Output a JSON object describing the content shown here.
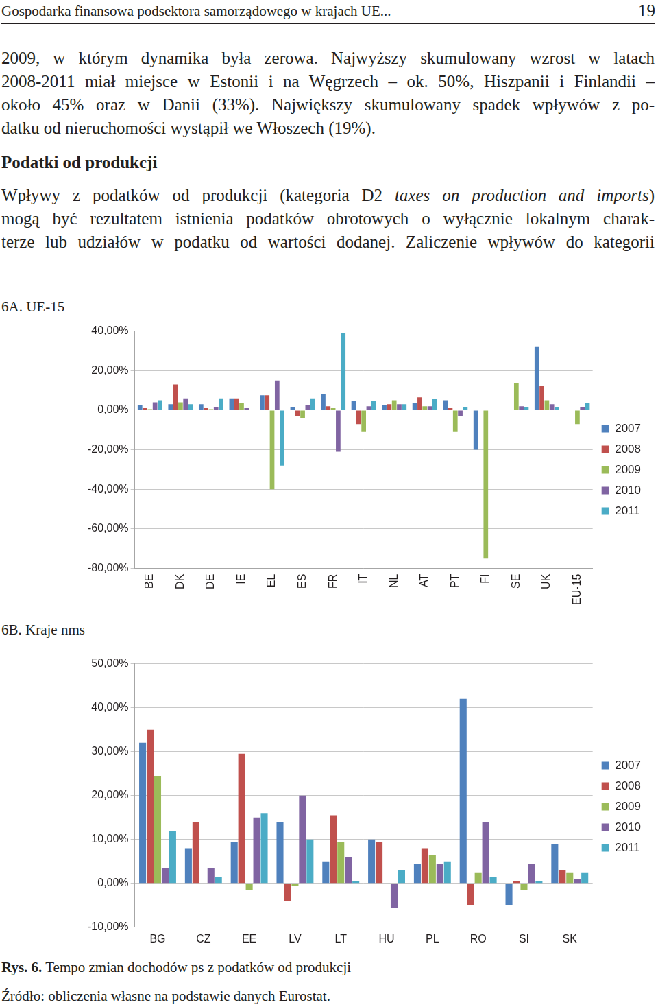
{
  "header": {
    "title": "Gospodarka finansowa podsektora samorządowego w krajach UE...",
    "page": "19"
  },
  "body": [
    {
      "type": "paragraph",
      "lines": [
        "2009, w którym dynamika była zerowa. Najwyższy skumulowany wzrost w latach",
        "2008-2011 miał miejsce w Estonii i na Węgrzech – ok. 50%, Hiszpanii i Finlandii –",
        "około 45% oraz w Danii (33%). Największy skumulowany spadek wpływów z po-",
        "datku od nieruchomości wystąpił we Włoszech (19%)."
      ]
    },
    {
      "type": "heading",
      "text": "Podatki od produkcji"
    },
    {
      "type": "paragraph",
      "lines": [
        [
          "Wpływy z podatków od produkcji (kategoria D2 ",
          "taxes on production and imports",
          ")"
        ],
        "mogą być rezultatem istnienia podatków obrotowych o wyłącznie lokalnym charak-",
        "terze lub udziałów w podatku od wartości dodanej. Zaliczenie wpływów do kategorii"
      ]
    }
  ],
  "chart_data": [
    {
      "type": "bar",
      "title": "6A. UE-15",
      "categories": [
        "BE",
        "DK",
        "DE",
        "IE",
        "EL",
        "ES",
        "FR",
        "IT",
        "NL",
        "AT",
        "PT",
        "FI",
        "SE",
        "UK",
        "EU-15"
      ],
      "series": [
        {
          "name": "2007",
          "color": "#4f81bd",
          "values": [
            2.5,
            3,
            3,
            6,
            7.5,
            1.5,
            8,
            4.5,
            2.5,
            3.5,
            5,
            -20,
            0,
            32,
            0
          ]
        },
        {
          "name": "2008",
          "color": "#c0504d",
          "values": [
            1,
            13,
            1,
            6,
            7.5,
            -3,
            2,
            -7,
            3,
            6.5,
            1,
            0,
            0,
            12.5,
            0
          ]
        },
        {
          "name": "2009",
          "color": "#9bbb59",
          "values": [
            0.5,
            4,
            0.5,
            3.5,
            -40,
            -4,
            1,
            -11,
            5,
            2,
            -11,
            -75,
            13.5,
            5,
            -7
          ]
        },
        {
          "name": "2010",
          "color": "#8064a2",
          "values": [
            4,
            6,
            1.5,
            1,
            15,
            2.5,
            -21,
            2,
            3,
            2,
            -3,
            0,
            2,
            3,
            1.5
          ]
        },
        {
          "name": "2011",
          "color": "#4bacc6",
          "values": [
            5,
            3,
            6,
            0,
            -28,
            6,
            39,
            4.5,
            3,
            5.5,
            1.5,
            0,
            1.5,
            1.5,
            3.5
          ]
        }
      ],
      "ylim": [
        -80,
        40
      ],
      "yticks": [
        {
          "value": -80,
          "label": "-80,00%"
        },
        {
          "value": -60,
          "label": "-60,00%"
        },
        {
          "value": -40,
          "label": "-40,00%"
        },
        {
          "value": -20,
          "label": "-20,00%"
        },
        {
          "value": 0,
          "label": "0,00%"
        },
        {
          "value": 20,
          "label": "20,00%"
        },
        {
          "value": 40,
          "label": "40,00%"
        }
      ],
      "grid": true,
      "legend": "right"
    },
    {
      "type": "bar",
      "title": "6B. Kraje nms",
      "categories": [
        "BG",
        "CZ",
        "EE",
        "LV",
        "LT",
        "HU",
        "PL",
        "RO",
        "SI",
        "SK"
      ],
      "series": [
        {
          "name": "2007",
          "color": "#4f81bd",
          "values": [
            32,
            8,
            9.5,
            14,
            5,
            10,
            4.5,
            42,
            -5,
            9
          ]
        },
        {
          "name": "2008",
          "color": "#c0504d",
          "values": [
            35,
            14,
            29.5,
            -4,
            15.5,
            9.5,
            8,
            -5,
            0.5,
            3
          ]
        },
        {
          "name": "2009",
          "color": "#9bbb59",
          "values": [
            24.5,
            0,
            -1.5,
            -0.5,
            9.5,
            0,
            6.5,
            2.5,
            -1.5,
            2.5
          ]
        },
        {
          "name": "2010",
          "color": "#8064a2",
          "values": [
            3.5,
            3.5,
            15,
            20,
            6,
            -5.5,
            4.5,
            14,
            4.5,
            1
          ]
        },
        {
          "name": "2011",
          "color": "#4bacc6",
          "values": [
            12,
            1.5,
            16,
            10,
            0.5,
            3,
            5,
            1.5,
            0.5,
            2.5
          ]
        }
      ],
      "ylim": [
        -10,
        50
      ],
      "yticks": [
        {
          "value": -10,
          "label": "-10,00%"
        },
        {
          "value": 0,
          "label": "0,00%"
        },
        {
          "value": 10,
          "label": "10,00%"
        },
        {
          "value": 20,
          "label": "20,00%"
        },
        {
          "value": 30,
          "label": "30,00%"
        },
        {
          "value": 40,
          "label": "40,00%"
        },
        {
          "value": 50,
          "label": "50,00%"
        }
      ],
      "grid": true,
      "legend": "right"
    }
  ],
  "caption": [
    "Rys. 6.",
    " Tempo zmian dochodów ps z podatków od produkcji"
  ],
  "source": "Źródło: obliczenia własne na podstawie danych Eurostat."
}
